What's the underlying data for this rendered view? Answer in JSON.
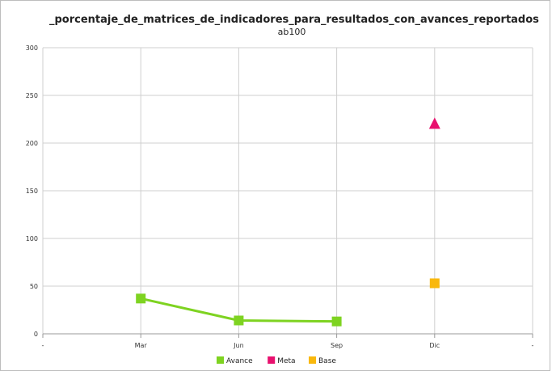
{
  "chart_data": {
    "type": "line",
    "title": "_porcentaje_de_matrices_de_indicadores_para_resultados_con_avances_reportados",
    "subtitle": "ab100",
    "categories": [
      "-",
      "Mar",
      "Jun",
      "Sep",
      "Dic",
      "-"
    ],
    "ylim": [
      0,
      300
    ],
    "y_ticks": [
      0,
      50,
      100,
      150,
      200,
      250,
      300
    ],
    "grid": true,
    "legend_position": "bottom",
    "series": [
      {
        "name": "Avance",
        "color": "#7ed321",
        "marker": "square",
        "line": true,
        "values": [
          null,
          37,
          14,
          13,
          null,
          null
        ]
      },
      {
        "name": "Meta",
        "color": "#e8106e",
        "marker": "triangle",
        "line": false,
        "values": [
          null,
          null,
          null,
          null,
          220,
          null
        ]
      },
      {
        "name": "Base",
        "color": "#f9b80d",
        "marker": "square",
        "line": false,
        "values": [
          null,
          null,
          null,
          null,
          53,
          null
        ]
      }
    ]
  }
}
